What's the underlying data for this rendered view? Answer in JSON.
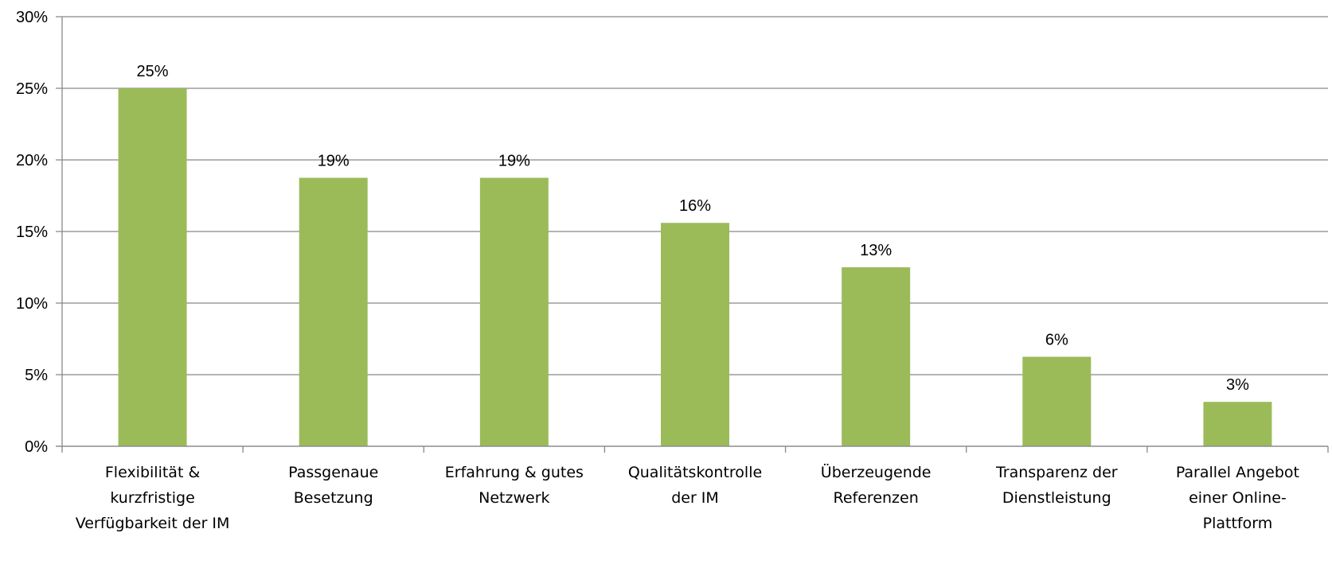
{
  "chart_data": {
    "type": "bar",
    "categories": [
      [
        "Flexibilität &",
        "kurzfristige",
        "Verfügbarkeit der IM"
      ],
      [
        "Passgenaue",
        "Besetzung"
      ],
      [
        "Erfahrung & gutes",
        "Netzwerk"
      ],
      [
        "Qualitätskontrolle",
        "der IM"
      ],
      [
        "Überzeugende",
        "Referenzen"
      ],
      [
        "Transparenz der",
        "Dienstleistung"
      ],
      [
        "Parallel Angebot",
        "einer Online-",
        "Plattform"
      ]
    ],
    "values": [
      25,
      18.75,
      18.75,
      15.6,
      12.5,
      6.25,
      3.1
    ],
    "data_labels": [
      "25%",
      "19%",
      "19%",
      "16%",
      "13%",
      "6%",
      "3%"
    ],
    "ylim": [
      0,
      30
    ],
    "yticks": [
      0,
      5,
      10,
      15,
      20,
      25,
      30
    ],
    "ytick_labels": [
      "0%",
      "5%",
      "10%",
      "15%",
      "20%",
      "25%",
      "30%"
    ],
    "grid": true,
    "colors": {
      "bar": "#9bbb59",
      "grid": "#888888",
      "axis": "#888888"
    }
  }
}
